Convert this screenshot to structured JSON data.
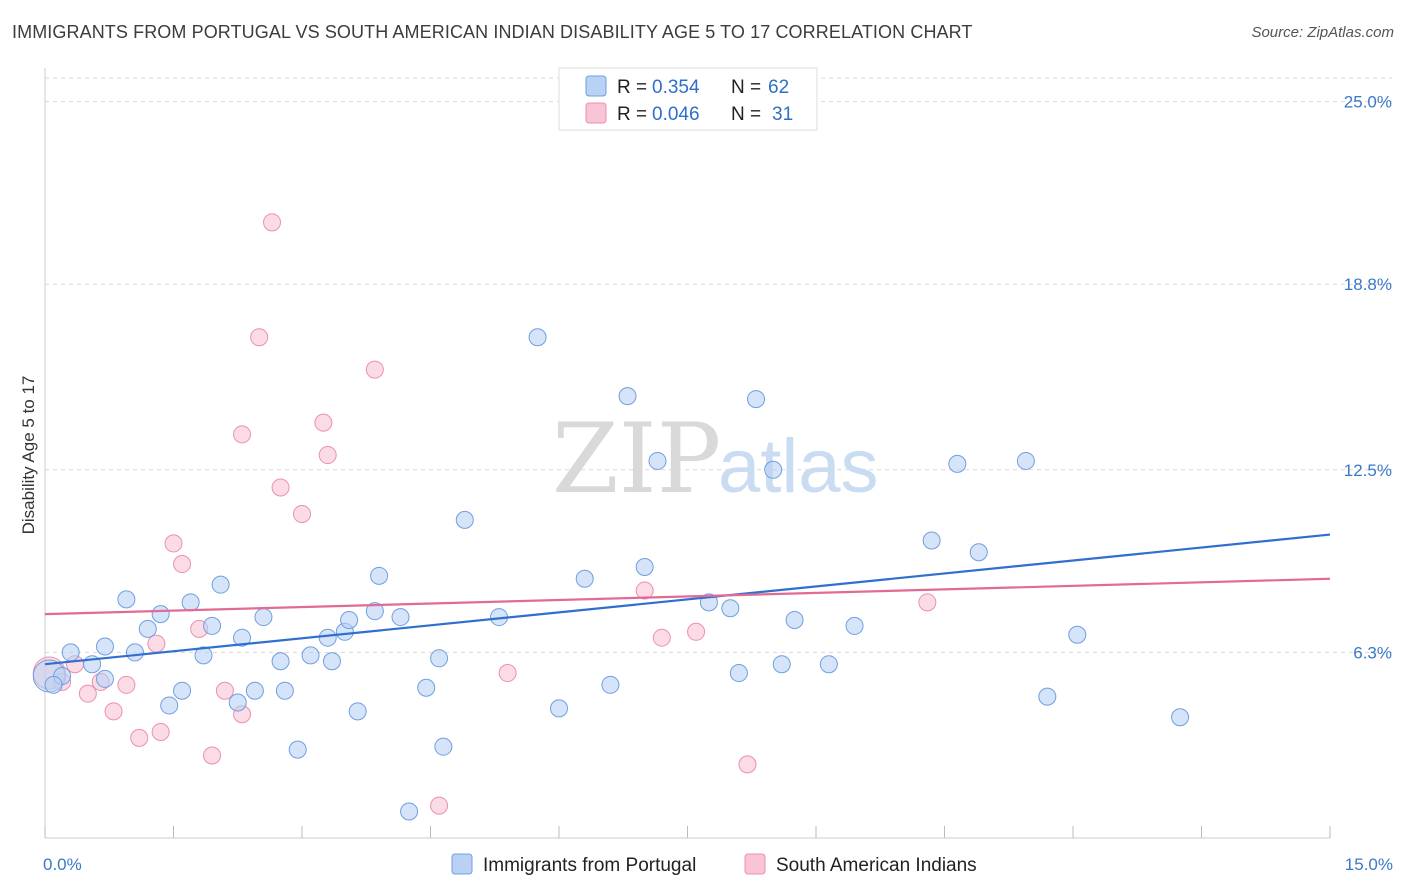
{
  "title": "IMMIGRANTS FROM PORTUGAL VS SOUTH AMERICAN INDIAN DISABILITY AGE 5 TO 17 CORRELATION CHART",
  "source": "Source: ZipAtlas.com",
  "watermark": {
    "zip": "ZIP",
    "atlas": "atlas"
  },
  "colors": {
    "blue_fill": "#b9d2f3",
    "blue_stroke": "#6f9fe0",
    "blue_line": "#2f6fd0",
    "pink_fill": "#f8c5d6",
    "pink_stroke": "#ec8fb0",
    "pink_line": "#e26b96",
    "tick_text": "#3b78c8",
    "grid": "#d8d8d8"
  },
  "legend": {
    "rows": [
      {
        "r_label": "R =",
        "r_value": "0.354",
        "n_label": "N =",
        "n_value": "62",
        "series": "blue"
      },
      {
        "r_label": "R =",
        "r_value": "0.046",
        "n_label": "N =",
        "n_value": "31",
        "series": "pink"
      }
    ]
  },
  "chart_data": {
    "type": "scatter",
    "title": "IMMIGRANTS FROM PORTUGAL VS SOUTH AMERICAN INDIAN DISABILITY AGE 5 TO 17 CORRELATION CHART",
    "xlabel": "",
    "ylabel": "Disability Age 5 to 17",
    "xlim": [
      0,
      15
    ],
    "ylim": [
      0,
      25.8
    ],
    "x_tick_labels": [
      "0.0%",
      "15.0%"
    ],
    "y_ticks": [
      6.3,
      12.5,
      18.8,
      25.0
    ],
    "y_tick_labels": [
      "6.3%",
      "12.5%",
      "18.8%",
      "25.0%"
    ],
    "grid": "horizontal-dashed",
    "legend_position": "top-center",
    "series": [
      {
        "name": "Immigrants from Portugal",
        "color": "blue",
        "trend": {
          "x": [
            0,
            15
          ],
          "y": [
            5.9,
            10.3
          ]
        },
        "points": [
          [
            0.05,
            5.5
          ],
          [
            0.2,
            5.5
          ],
          [
            0.3,
            6.3
          ],
          [
            0.55,
            5.9
          ],
          [
            0.7,
            5.4
          ],
          [
            0.7,
            6.5
          ],
          [
            0.95,
            8.1
          ],
          [
            1.05,
            6.3
          ],
          [
            1.2,
            7.1
          ],
          [
            1.35,
            7.6
          ],
          [
            1.45,
            4.5
          ],
          [
            1.6,
            5.0
          ],
          [
            1.7,
            8.0
          ],
          [
            1.85,
            6.2
          ],
          [
            1.95,
            7.2
          ],
          [
            2.05,
            8.6
          ],
          [
            2.25,
            4.6
          ],
          [
            2.3,
            6.8
          ],
          [
            2.45,
            5.0
          ],
          [
            2.55,
            7.5
          ],
          [
            2.75,
            6.0
          ],
          [
            2.8,
            5.0
          ],
          [
            2.95,
            3.0
          ],
          [
            3.1,
            6.2
          ],
          [
            3.3,
            6.8
          ],
          [
            3.35,
            6.0
          ],
          [
            3.5,
            7.0
          ],
          [
            3.55,
            7.4
          ],
          [
            3.65,
            4.3
          ],
          [
            3.85,
            7.7
          ],
          [
            3.9,
            8.9
          ],
          [
            4.15,
            7.5
          ],
          [
            4.25,
            0.9
          ],
          [
            4.45,
            5.1
          ],
          [
            4.6,
            6.1
          ],
          [
            4.65,
            3.1
          ],
          [
            4.9,
            10.8
          ],
          [
            5.3,
            7.5
          ],
          [
            5.75,
            17.0
          ],
          [
            6.0,
            4.4
          ],
          [
            6.3,
            8.8
          ],
          [
            6.6,
            5.2
          ],
          [
            6.8,
            15.0
          ],
          [
            7.0,
            9.2
          ],
          [
            7.15,
            12.8
          ],
          [
            7.75,
            8.0
          ],
          [
            8.0,
            7.8
          ],
          [
            8.1,
            5.6
          ],
          [
            8.3,
            14.9
          ],
          [
            8.5,
            12.5
          ],
          [
            8.6,
            5.9
          ],
          [
            8.75,
            7.4
          ],
          [
            9.15,
            5.9
          ],
          [
            9.45,
            7.2
          ],
          [
            10.35,
            10.1
          ],
          [
            10.65,
            12.7
          ],
          [
            10.9,
            9.7
          ],
          [
            11.45,
            12.8
          ],
          [
            11.7,
            4.8
          ],
          [
            12.05,
            6.9
          ],
          [
            13.25,
            4.1
          ],
          [
            0.1,
            5.2
          ]
        ]
      },
      {
        "name": "South American Indians",
        "color": "pink",
        "trend": {
          "x": [
            0,
            15
          ],
          "y": [
            7.6,
            8.8
          ]
        },
        "points": [
          [
            0.05,
            5.6
          ],
          [
            0.2,
            5.3
          ],
          [
            0.35,
            5.9
          ],
          [
            0.5,
            4.9
          ],
          [
            0.65,
            5.3
          ],
          [
            0.8,
            4.3
          ],
          [
            0.95,
            5.2
          ],
          [
            1.1,
            3.4
          ],
          [
            1.3,
            6.6
          ],
          [
            1.35,
            3.6
          ],
          [
            1.5,
            10.0
          ],
          [
            1.6,
            9.3
          ],
          [
            1.8,
            7.1
          ],
          [
            1.95,
            2.8
          ],
          [
            2.1,
            5.0
          ],
          [
            2.3,
            4.2
          ],
          [
            2.3,
            13.7
          ],
          [
            2.5,
            17.0
          ],
          [
            2.65,
            20.9
          ],
          [
            2.75,
            11.9
          ],
          [
            3.0,
            11.0
          ],
          [
            3.25,
            14.1
          ],
          [
            3.3,
            13.0
          ],
          [
            3.85,
            15.9
          ],
          [
            4.6,
            1.1
          ],
          [
            5.4,
            5.6
          ],
          [
            7.0,
            8.4
          ],
          [
            7.2,
            6.8
          ],
          [
            7.6,
            7.0
          ],
          [
            8.2,
            2.5
          ],
          [
            10.3,
            8.0
          ]
        ]
      }
    ]
  },
  "bottom_legend": [
    {
      "label": "Immigrants from Portugal",
      "series": "blue"
    },
    {
      "label": "South American Indians",
      "series": "pink"
    }
  ]
}
